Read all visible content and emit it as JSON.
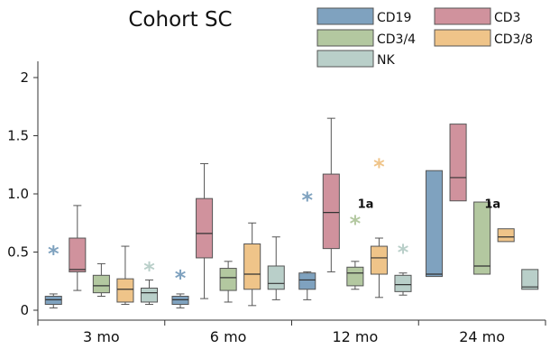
{
  "chart_data": {
    "type": "box",
    "title": "Cohort SC",
    "xlabel": "",
    "ylabel": "",
    "ylim": [
      0,
      2.1
    ],
    "yticks": [
      0,
      0.5,
      1.0,
      1.5,
      2
    ],
    "ytick_labels": [
      "0",
      "0.5",
      "1.0",
      "1.5",
      "2"
    ],
    "categories": [
      "3 mo",
      "6 mo",
      "12 mo",
      "24 mo"
    ],
    "legend_position": "top-right",
    "series": [
      {
        "name": "CD19",
        "color": "#7fa2bf",
        "boxes": [
          {
            "min": 0.02,
            "q1": 0.05,
            "median": 0.09,
            "q3": 0.12,
            "max": 0.14
          },
          {
            "min": 0.02,
            "q1": 0.05,
            "median": 0.09,
            "q3": 0.12,
            "max": 0.14
          },
          {
            "min": 0.09,
            "q1": 0.18,
            "median": 0.26,
            "q3": 0.32,
            "max": 0.33
          },
          {
            "min": 0.29,
            "q1": 0.29,
            "median": 0.31,
            "q3": 1.2,
            "max": 1.2
          }
        ],
        "outliers": [
          {
            "category": "3 mo",
            "value": 0.5
          },
          {
            "category": "6 mo",
            "value": 0.29
          },
          {
            "category": "12 mo",
            "value": 0.96
          }
        ]
      },
      {
        "name": "CD3",
        "color": "#d0929d",
        "boxes": [
          {
            "min": 0.17,
            "q1": 0.33,
            "median": 0.35,
            "q3": 0.62,
            "max": 0.9
          },
          {
            "min": 0.1,
            "q1": 0.45,
            "median": 0.66,
            "q3": 0.96,
            "max": 1.26
          },
          {
            "min": 0.33,
            "q1": 0.53,
            "median": 0.84,
            "q3": 1.17,
            "max": 1.65
          },
          {
            "min": 0.94,
            "q1": 0.94,
            "median": 1.14,
            "q3": 1.6,
            "max": 1.6
          }
        ],
        "outliers": []
      },
      {
        "name": "CD3/4",
        "color": "#b3c8a0",
        "boxes": [
          {
            "min": 0.12,
            "q1": 0.15,
            "median": 0.21,
            "q3": 0.3,
            "max": 0.4
          },
          {
            "min": 0.07,
            "q1": 0.17,
            "median": 0.28,
            "q3": 0.36,
            "max": 0.42
          },
          {
            "min": 0.18,
            "q1": 0.21,
            "median": 0.32,
            "q3": 0.37,
            "max": 0.42
          },
          {
            "min": 0.31,
            "q1": 0.31,
            "median": 0.38,
            "q3": 0.93,
            "max": 0.93
          }
        ],
        "outliers": [
          {
            "category": "12 mo",
            "value": 0.76
          }
        ]
      },
      {
        "name": "CD3/8",
        "color": "#efc489",
        "boxes": [
          {
            "min": 0.05,
            "q1": 0.07,
            "median": 0.18,
            "q3": 0.27,
            "max": 0.55
          },
          {
            "min": 0.04,
            "q1": 0.18,
            "median": 0.31,
            "q3": 0.57,
            "max": 0.75
          },
          {
            "min": 0.11,
            "q1": 0.31,
            "median": 0.45,
            "q3": 0.55,
            "max": 0.62
          },
          {
            "min": 0.59,
            "q1": 0.59,
            "median": 0.63,
            "q3": 0.7,
            "max": 0.7
          }
        ],
        "outliers": [
          {
            "category": "12 mo",
            "value": 1.25
          }
        ]
      },
      {
        "name": "NK",
        "color": "#b9cfc9",
        "boxes": [
          {
            "min": 0.05,
            "q1": 0.07,
            "median": 0.15,
            "q3": 0.19,
            "max": 0.26
          },
          {
            "min": 0.09,
            "q1": 0.18,
            "median": 0.23,
            "q3": 0.38,
            "max": 0.63
          },
          {
            "min": 0.13,
            "q1": 0.16,
            "median": 0.22,
            "q3": 0.3,
            "max": 0.32
          },
          {
            "min": 0.18,
            "q1": 0.18,
            "median": 0.2,
            "q3": 0.35,
            "max": 0.35
          }
        ],
        "outliers": [
          {
            "category": "3 mo",
            "value": 0.36
          },
          {
            "category": "12 mo",
            "value": 0.51
          }
        ]
      }
    ],
    "annotations": [
      {
        "category": "12 mo",
        "value": 0.92,
        "text": "1a"
      },
      {
        "category": "24 mo",
        "value": 0.92,
        "text": "1a"
      }
    ]
  }
}
